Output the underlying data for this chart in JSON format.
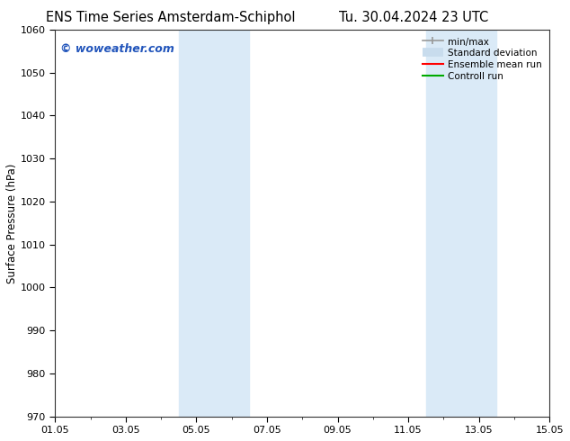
{
  "title_left": "ENS Time Series Amsterdam-Schiphol",
  "title_right": "Tu. 30.04.2024 23 UTC",
  "ylabel": "Surface Pressure (hPa)",
  "ylim": [
    970,
    1060
  ],
  "yticks": [
    970,
    980,
    990,
    1000,
    1010,
    1020,
    1030,
    1040,
    1050,
    1060
  ],
  "xlim_start": 0,
  "xlim_end": 14,
  "xtick_labels": [
    "01.05",
    "03.05",
    "05.05",
    "07.05",
    "09.05",
    "11.05",
    "13.05",
    "15.05"
  ],
  "xtick_positions": [
    0,
    2,
    4,
    6,
    8,
    10,
    12,
    14
  ],
  "shaded_regions": [
    {
      "x_start": 3.5,
      "x_end": 5.5
    },
    {
      "x_start": 10.5,
      "x_end": 12.5
    }
  ],
  "bg_color": "#ffffff",
  "shade_color": "#daeaf7",
  "watermark_text": "© woweather.com",
  "watermark_color": "#2255bb",
  "legend_labels": [
    "min/max",
    "Standard deviation",
    "Ensemble mean run",
    "Controll run"
  ],
  "legend_colors": [
    "#999999",
    "#c8dced",
    "#ff0000",
    "#00aa00"
  ],
  "title_fontsize": 10.5,
  "ylabel_fontsize": 8.5,
  "tick_fontsize": 8,
  "legend_fontsize": 7.5,
  "watermark_fontsize": 9
}
